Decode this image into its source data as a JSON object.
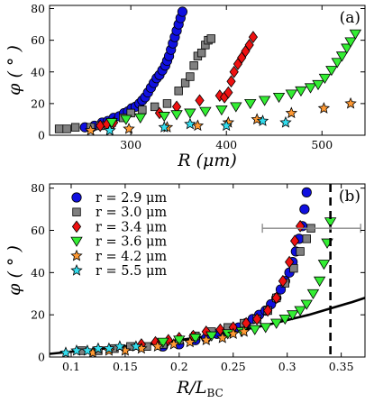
{
  "chart_data": [
    {
      "type": "scatter",
      "panel_label": "(a)",
      "xlabel": "R (μm)",
      "ylabel": "φ ( ° )",
      "xlim": [
        215,
        545
      ],
      "ylim": [
        0,
        82
      ],
      "xticks": [
        300,
        400,
        500
      ],
      "yticks": [
        0,
        20,
        40,
        60,
        80
      ],
      "grid": false,
      "series": [
        {
          "marker": "circle",
          "color": "#1010e0",
          "x": [
            252,
            262,
            270,
            276,
            282,
            288,
            293,
            297,
            301,
            305,
            309,
            312,
            315,
            318,
            321,
            324,
            327,
            330,
            333,
            336,
            338,
            340,
            342,
            344,
            346,
            348,
            350,
            352,
            354
          ],
          "y": [
            5,
            6,
            8,
            9,
            11,
            12,
            14,
            15,
            17,
            18,
            20,
            22,
            24,
            27,
            30,
            33,
            36,
            38,
            41,
            44,
            47,
            50,
            54,
            58,
            62,
            66,
            70,
            74,
            78
          ]
        },
        {
          "marker": "square",
          "color": "#808080",
          "x": [
            225,
            233,
            242,
            258,
            268,
            280,
            292,
            300,
            312,
            325,
            338,
            350,
            357,
            362,
            366,
            370,
            374,
            378,
            381,
            384
          ],
          "y": [
            4,
            4,
            5,
            5,
            6,
            8,
            11,
            14,
            16,
            18,
            20,
            28,
            33,
            37,
            44,
            50,
            52,
            57,
            60,
            61
          ]
        },
        {
          "marker": "diamond",
          "color": "#ee1111",
          "x": [
            268,
            275,
            282,
            330,
            348,
            372,
            393,
            398,
            402,
            405,
            408,
            412,
            416,
            420,
            424,
            428
          ],
          "y": [
            6,
            7,
            8,
            14,
            18,
            22,
            25,
            24,
            27,
            34,
            40,
            45,
            49,
            53,
            57,
            62
          ]
        },
        {
          "marker": "triangle-down",
          "color": "#33ee33",
          "x": [
            280,
            295,
            310,
            335,
            348,
            362,
            378,
            395,
            410,
            425,
            440,
            455,
            468,
            478,
            488,
            496,
            503,
            510,
            516,
            521,
            526,
            530,
            535
          ],
          "y": [
            8,
            10,
            11,
            12,
            13,
            14,
            15,
            16,
            18,
            20,
            22,
            24,
            26,
            28,
            30,
            32,
            36,
            41,
            46,
            50,
            55,
            59,
            64
          ]
        },
        {
          "marker": "star",
          "color": "#ff9933",
          "x": [
            258,
            278,
            298,
            338,
            370,
            402,
            432,
            468,
            502,
            530
          ],
          "y": [
            3,
            3,
            4,
            5,
            6,
            8,
            10,
            14,
            17,
            20
          ]
        },
        {
          "marker": "star",
          "color": "#33ddee",
          "x": [
            278,
            335,
            362,
            400,
            438,
            462
          ],
          "y": [
            3,
            5,
            7,
            6,
            9,
            8
          ]
        }
      ]
    },
    {
      "type": "scatter",
      "panel_label": "(b)",
      "xlabel": "R/L_BC",
      "xlabel_main": "R/L",
      "xlabel_sub": "BC",
      "ylabel": "φ ( ° )",
      "xlim": [
        0.08,
        0.372
      ],
      "ylim": [
        0,
        82
      ],
      "xticks": [
        0.1,
        0.15,
        0.2,
        0.25,
        0.3,
        0.35
      ],
      "xtick_labels": [
        "0.1",
        "0.15",
        "0.2",
        "0.25",
        "0.3",
        "0.35"
      ],
      "yticks": [
        0,
        20,
        40,
        60,
        80
      ],
      "grid": false,
      "legend_position": "top-left",
      "vline_x": 0.34,
      "error_point": {
        "x": 0.34,
        "y": 61,
        "xerr": [
          0.277,
          0.368
        ]
      },
      "curve": {
        "x": [
          0.08,
          0.1,
          0.12,
          0.14,
          0.16,
          0.18,
          0.2,
          0.22,
          0.24,
          0.26,
          0.28,
          0.3,
          0.32,
          0.34,
          0.36,
          0.372
        ],
        "y": [
          1.5,
          2.5,
          3.5,
          4.5,
          5.5,
          6.5,
          8,
          9.5,
          11,
          13,
          15,
          17.5,
          20,
          23,
          26,
          28
        ]
      },
      "series": [
        {
          "name": "r = 2.9 μm",
          "marker": "circle",
          "color": "#1010e0",
          "x": [
            0.185,
            0.2,
            0.215,
            0.225,
            0.235,
            0.245,
            0.255,
            0.262,
            0.268,
            0.274,
            0.28,
            0.285,
            0.29,
            0.294,
            0.298,
            0.302,
            0.305,
            0.308,
            0.311,
            0.314,
            0.316,
            0.318
          ],
          "y": [
            5,
            6,
            8,
            9,
            11,
            12,
            14,
            16,
            18,
            20,
            22,
            25,
            28,
            32,
            36,
            40,
            45,
            50,
            56,
            62,
            70,
            78
          ]
        },
        {
          "name": "r = 3.0 μm",
          "marker": "square",
          "color": "#808080",
          "x": [
            0.11,
            0.125,
            0.14,
            0.155,
            0.17,
            0.185,
            0.2,
            0.215,
            0.23,
            0.245,
            0.26,
            0.272,
            0.282,
            0.29,
            0.298,
            0.306,
            0.312,
            0.318,
            0.322
          ],
          "y": [
            3,
            3,
            4,
            5,
            5,
            6,
            8,
            10,
            12,
            14,
            16,
            18,
            22,
            28,
            35,
            42,
            50,
            56,
            61
          ]
        },
        {
          "name": "r = 3.4 μm",
          "marker": "diamond",
          "color": "#ee1111",
          "x": [
            0.165,
            0.178,
            0.19,
            0.2,
            0.213,
            0.225,
            0.238,
            0.25,
            0.262,
            0.272,
            0.282,
            0.29,
            0.296,
            0.302,
            0.307,
            0.312
          ],
          "y": [
            6,
            7,
            8,
            9,
            10,
            12,
            13,
            14,
            16,
            18,
            22,
            28,
            36,
            45,
            55,
            62
          ]
        },
        {
          "name": "r = 3.6 μm",
          "marker": "triangle-down",
          "color": "#33ee33",
          "x": [
            0.185,
            0.2,
            0.215,
            0.23,
            0.245,
            0.258,
            0.27,
            0.28,
            0.29,
            0.298,
            0.305,
            0.312,
            0.318,
            0.324,
            0.33,
            0.334,
            0.337,
            0.34
          ],
          "y": [
            7,
            8,
            9,
            10,
            11,
            12,
            13,
            14,
            16,
            18,
            20,
            22,
            25,
            30,
            36,
            44,
            54,
            64
          ]
        },
        {
          "name": "r = 4.2 μm",
          "marker": "star",
          "color": "#ff9933",
          "x": [
            0.12,
            0.135,
            0.15,
            0.165,
            0.18,
            0.195,
            0.21,
            0.225,
            0.24,
            0.25,
            0.26
          ],
          "y": [
            2,
            3,
            3,
            4,
            5,
            6,
            7,
            8,
            9,
            11,
            12
          ]
        },
        {
          "name": "r = 5.5 μm",
          "marker": "star",
          "color": "#33ddee",
          "x": [
            0.095,
            0.105,
            0.115,
            0.125,
            0.135,
            0.145,
            0.16
          ],
          "y": [
            2,
            3,
            3,
            4,
            4,
            5,
            5
          ]
        }
      ]
    }
  ]
}
